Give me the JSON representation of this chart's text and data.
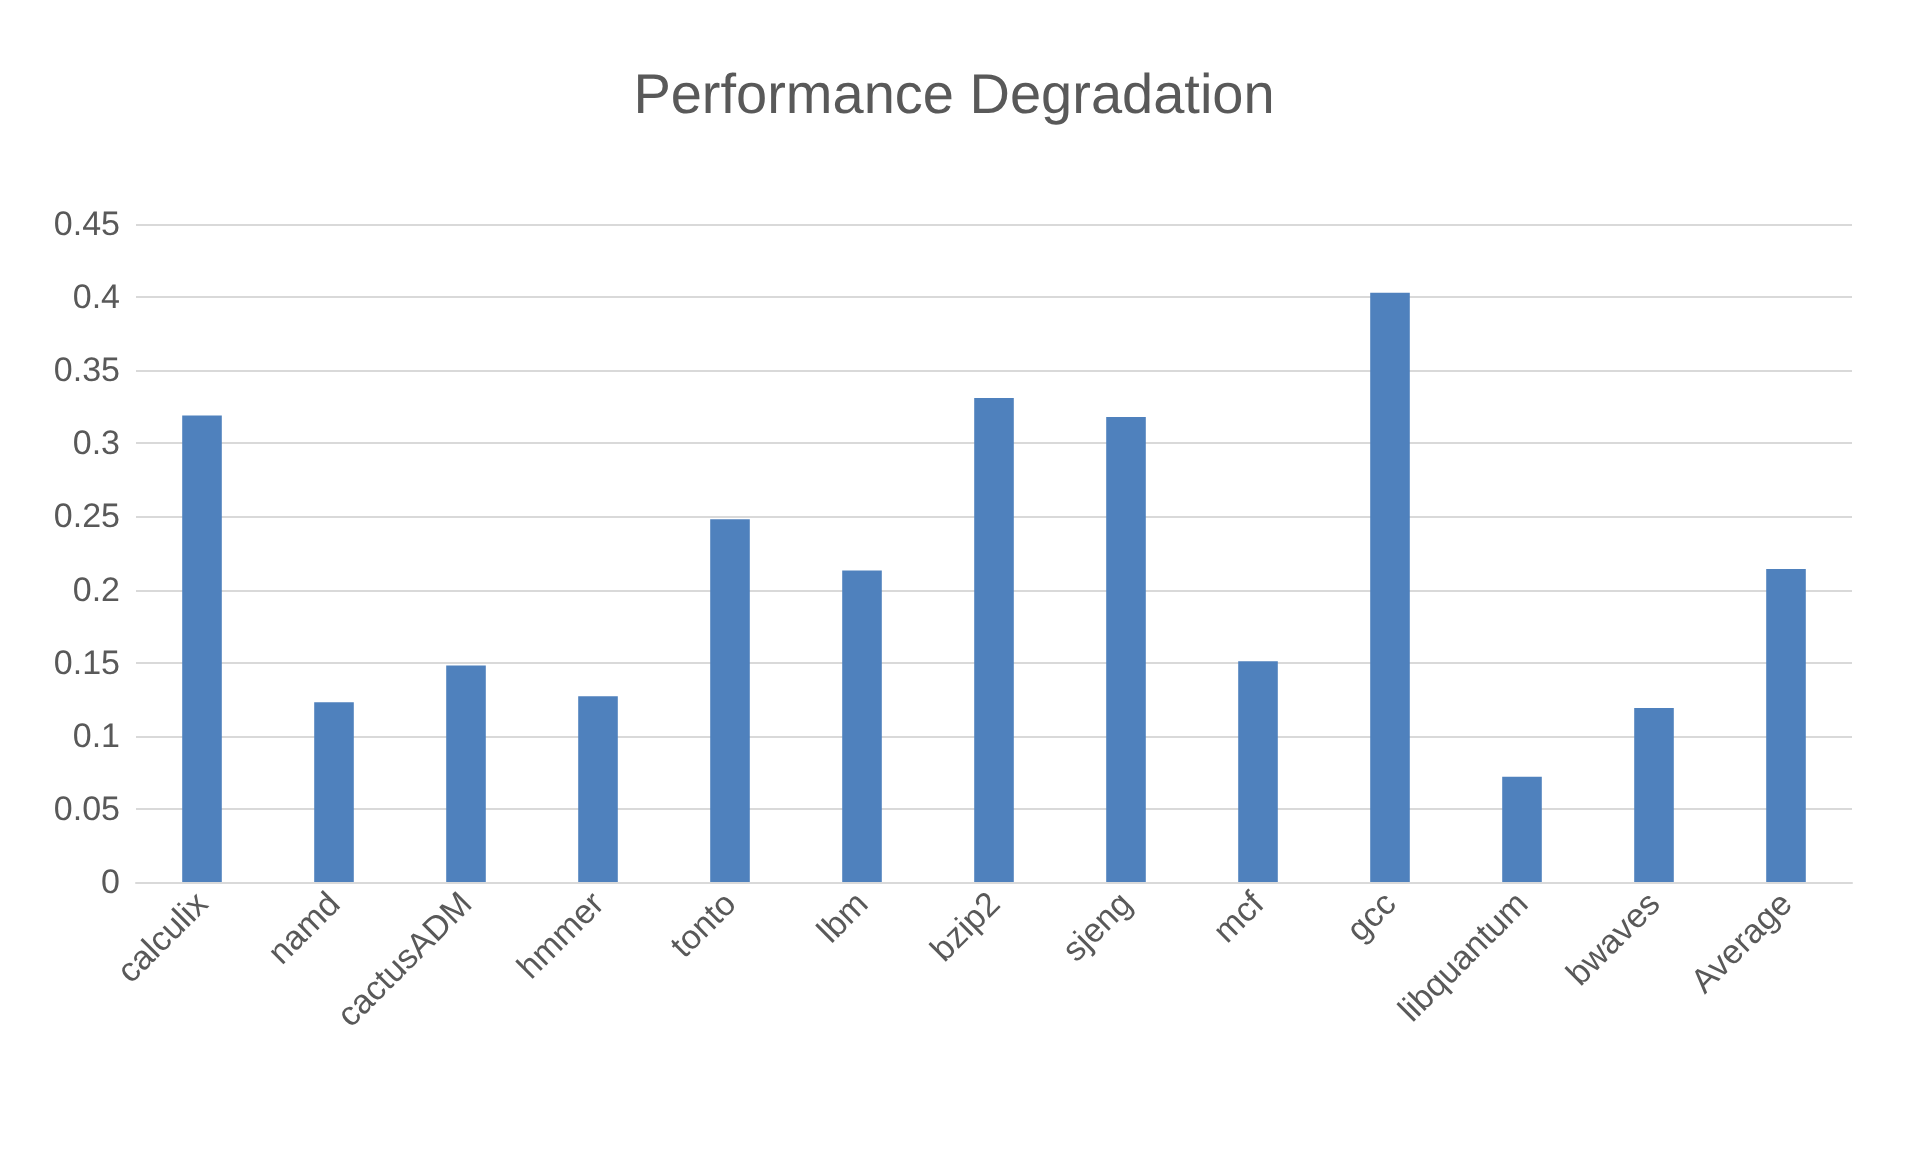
{
  "chart_data": {
    "type": "bar",
    "title": "Performance Degradation",
    "categories": [
      "calculix",
      "namd",
      "cactusADM",
      "hmmer",
      "tonto",
      "lbm",
      "bzip2",
      "sjeng",
      "mcf",
      "gcc",
      "libquantum",
      "bwaves",
      "Average"
    ],
    "values": [
      0.319,
      0.123,
      0.148,
      0.127,
      0.248,
      0.213,
      0.331,
      0.318,
      0.151,
      0.403,
      0.072,
      0.119,
      0.214
    ],
    "color": "#4f81bd",
    "ylim": [
      0,
      0.45
    ],
    "yticks": [
      0,
      0.05,
      0.1,
      0.15,
      0.2,
      0.25,
      0.3,
      0.35,
      0.4,
      0.45
    ],
    "grid": "y"
  }
}
